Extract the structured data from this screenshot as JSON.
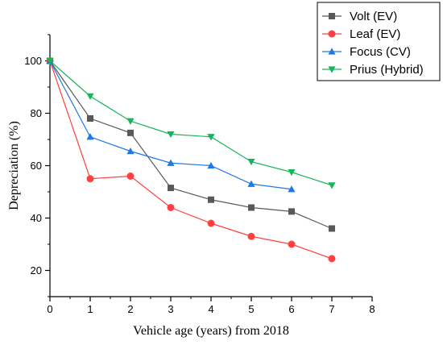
{
  "chart_data": {
    "type": "line",
    "xlabel": "Vehicle age (years) from 2018",
    "ylabel": "Depreciation (%)",
    "xlim": [
      0,
      8
    ],
    "ylim": [
      10,
      110
    ],
    "xticks": [
      0,
      1,
      2,
      3,
      4,
      5,
      6,
      7,
      8
    ],
    "yticks": [
      20,
      40,
      60,
      80,
      100
    ],
    "grid": false,
    "legend_position": "top-right",
    "series": [
      {
        "name": "Volt (EV)",
        "color": "#595959",
        "marker": "square",
        "x": [
          0,
          1,
          2,
          3,
          4,
          5,
          6,
          7
        ],
        "y": [
          100,
          78,
          72.5,
          51.5,
          47,
          44,
          42.5,
          36
        ]
      },
      {
        "name": "Leaf (EV)",
        "color": "#ff4040",
        "marker": "circle",
        "x": [
          0,
          1,
          2,
          3,
          4,
          5,
          6,
          7
        ],
        "y": [
          100,
          55,
          56,
          44,
          38,
          33,
          30,
          24.5
        ]
      },
      {
        "name": "Focus (CV)",
        "color": "#1e78e6",
        "marker": "triangle-up",
        "x": [
          0,
          1,
          2,
          3,
          4,
          5,
          6
        ],
        "y": [
          100,
          71,
          65.5,
          61,
          60,
          53,
          51
        ]
      },
      {
        "name": "Prius (Hybrid)",
        "color": "#19b45a",
        "marker": "triangle-down",
        "x": [
          0,
          1,
          2,
          3,
          4,
          5,
          6,
          7
        ],
        "y": [
          100,
          86.5,
          77,
          72,
          71,
          61.5,
          57.5,
          52.5
        ]
      }
    ]
  }
}
